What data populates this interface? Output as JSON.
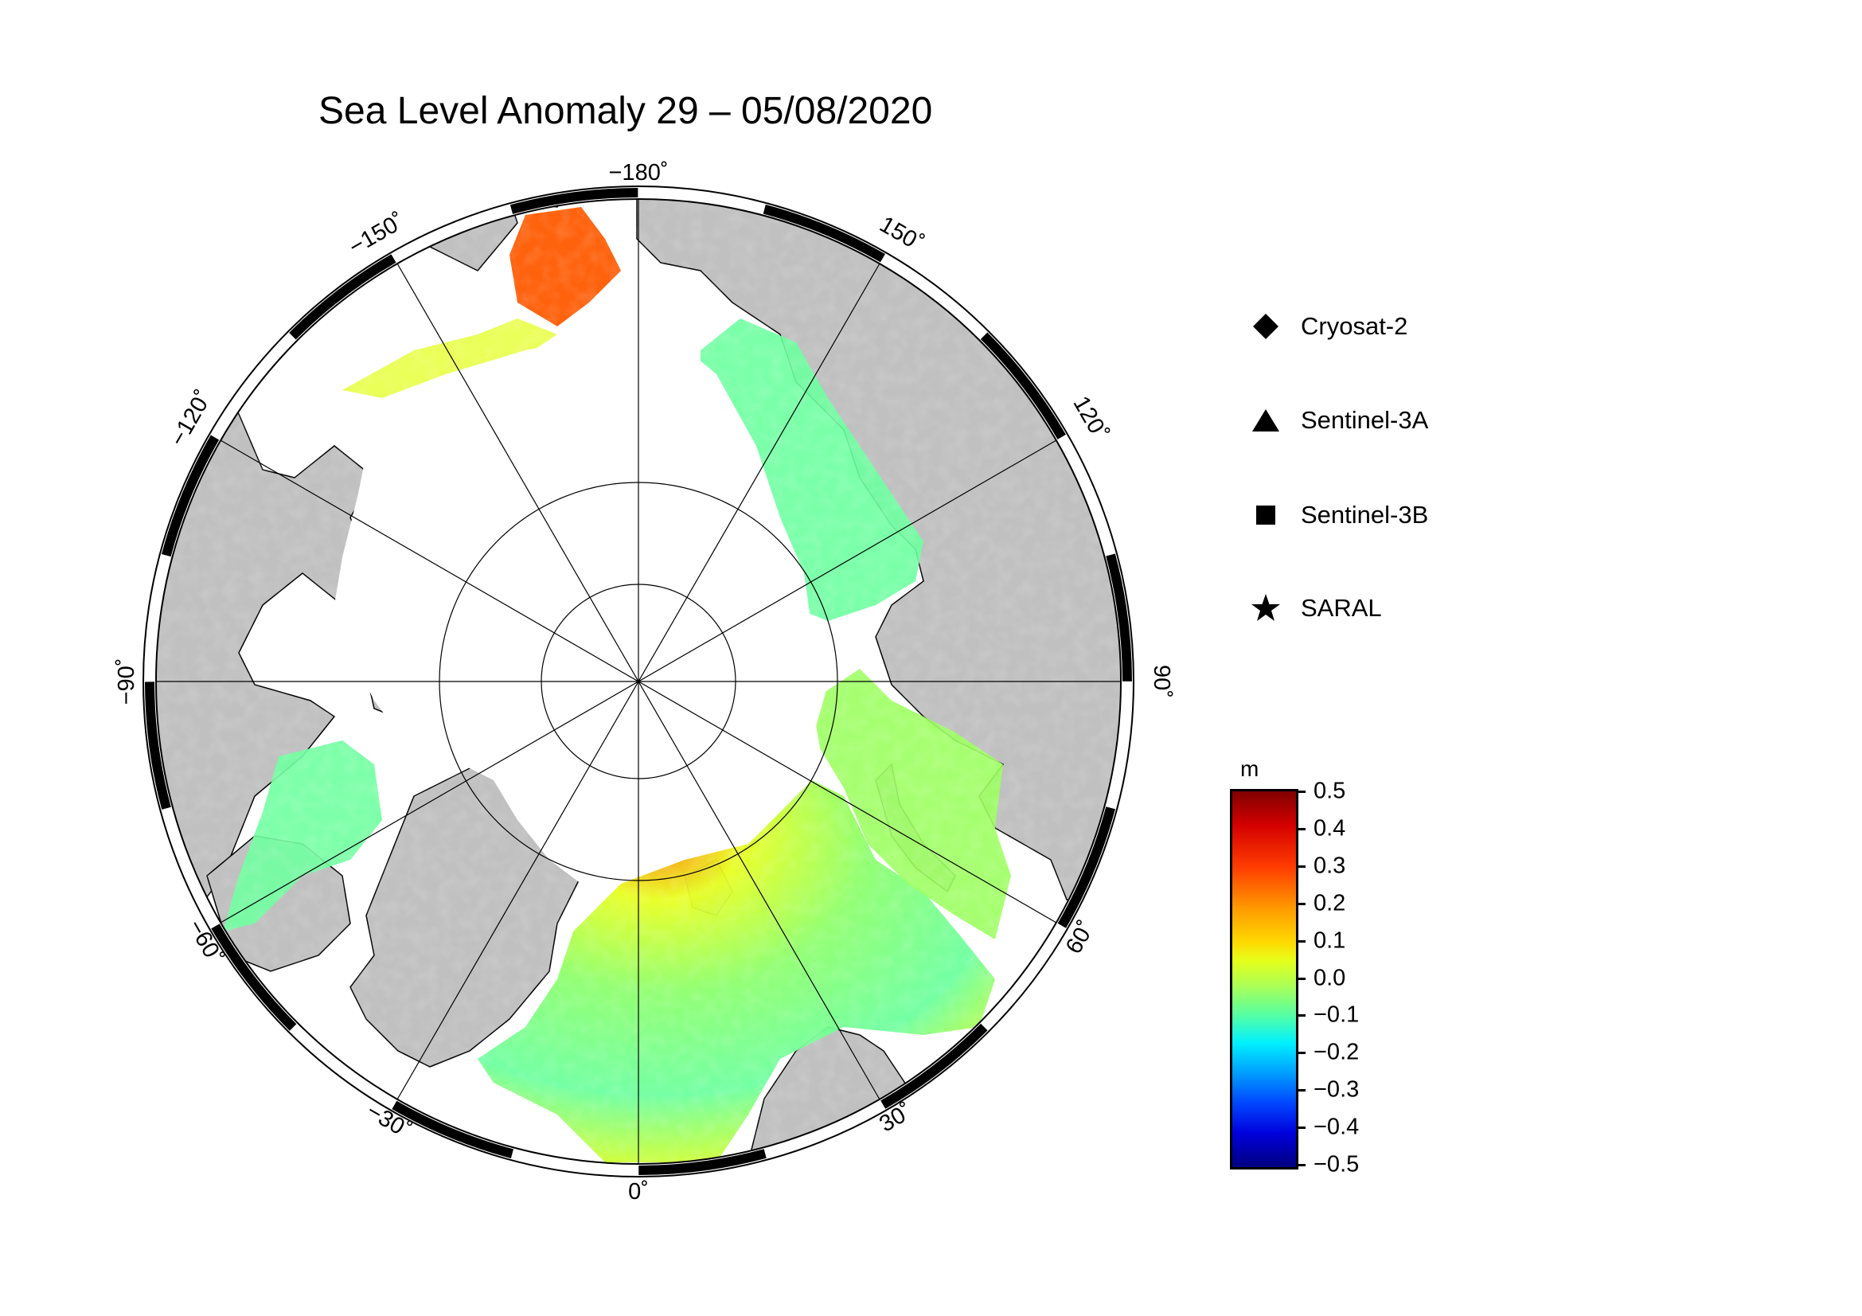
{
  "title": "Sea Level Anomaly 29 – 05/08/2020",
  "map": {
    "projection": "north-polar-stereographic",
    "meridian_labels": [
      {
        "lon": -180,
        "text": "−180˚"
      },
      {
        "lon": 150,
        "text": "150˚"
      },
      {
        "lon": 120,
        "text": "120˚"
      },
      {
        "lon": 90,
        "text": "90˚"
      },
      {
        "lon": 60,
        "text": "60˚"
      },
      {
        "lon": 30,
        "text": "30˚"
      },
      {
        "lon": 0,
        "text": "0˚"
      },
      {
        "lon": -30,
        "text": "−30˚"
      },
      {
        "lon": -60,
        "text": "−60˚"
      },
      {
        "lon": -90,
        "text": "−90˚"
      },
      {
        "lon": -120,
        "text": "−120˚"
      },
      {
        "lon": -150,
        "text": "−150˚"
      }
    ],
    "colors": {
      "land": "#c0c0c0",
      "ice": "#ffffff",
      "frame": "#000000"
    }
  },
  "legend": {
    "items": [
      {
        "symbol": "diamond",
        "label": "Cryosat-2"
      },
      {
        "symbol": "triangle",
        "label": "Sentinel-3A"
      },
      {
        "symbol": "square",
        "label": "Sentinel-3B"
      },
      {
        "symbol": "star",
        "label": "SARAL"
      }
    ]
  },
  "colorbar": {
    "unit": "m",
    "min": -0.5,
    "max": 0.5,
    "ticks": [
      "0.5",
      "0.4",
      "0.3",
      "0.2",
      "0.1",
      "0.0",
      "−0.1",
      "−0.2",
      "−0.3",
      "−0.4",
      "−0.5"
    ],
    "colormap": "jet"
  }
}
